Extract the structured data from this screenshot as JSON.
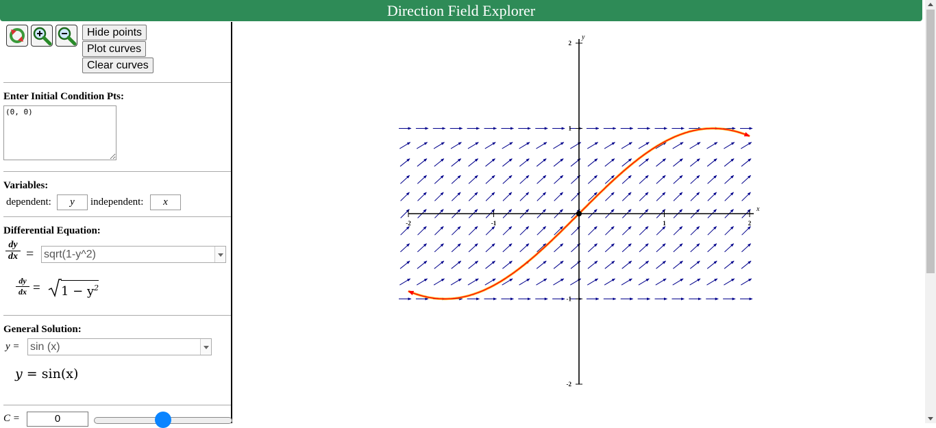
{
  "header": {
    "title": "Direction Field Explorer"
  },
  "toolbar": {
    "icons": [
      "reset-icon",
      "zoom-in-icon",
      "zoom-out-icon"
    ],
    "hide_points": "Hide points",
    "plot_curves": "Plot curves",
    "clear_curves": "Clear curves"
  },
  "initial_conditions": {
    "label": "Enter Initial Condition Pts:",
    "value": "(0, 0)"
  },
  "variables": {
    "label": "Variables:",
    "dependent_label": "dependent:",
    "dependent_value": "y",
    "independent_label": "independent:",
    "independent_value": "x"
  },
  "differential_equation": {
    "label": "Differential Equation:",
    "lhs_num": "dy",
    "lhs_den": "dx",
    "equals": "=",
    "value": "sqrt(1-y^2)",
    "rendered_rhs_radical": "1 − y",
    "rendered_rhs_exp": "2"
  },
  "general_solution": {
    "label": "General Solution:",
    "prefix": "y =",
    "value": "sin (x)",
    "rendered_lhs": "y",
    "rendered_eq": "=",
    "rendered_rhs": "sin(x)"
  },
  "constant": {
    "label": "C =",
    "value": "0",
    "slider_fraction": 0.5
  },
  "plot": {
    "x_axis_label": "x",
    "y_axis_label": "y",
    "x_ticks": [
      -2,
      -1,
      1,
      2
    ],
    "y_ticks": [
      -2,
      -1,
      1,
      2
    ],
    "x_range": [
      -2,
      2
    ],
    "y_range": [
      -2,
      2
    ],
    "field_y_range": [
      -1,
      1
    ],
    "initial_point": [
      0,
      0
    ],
    "solution_color": "#ff0000",
    "arrow_color": "#00008b"
  },
  "colors": {
    "header": "#2e8b57",
    "slider_knob": "#0a84ff"
  }
}
